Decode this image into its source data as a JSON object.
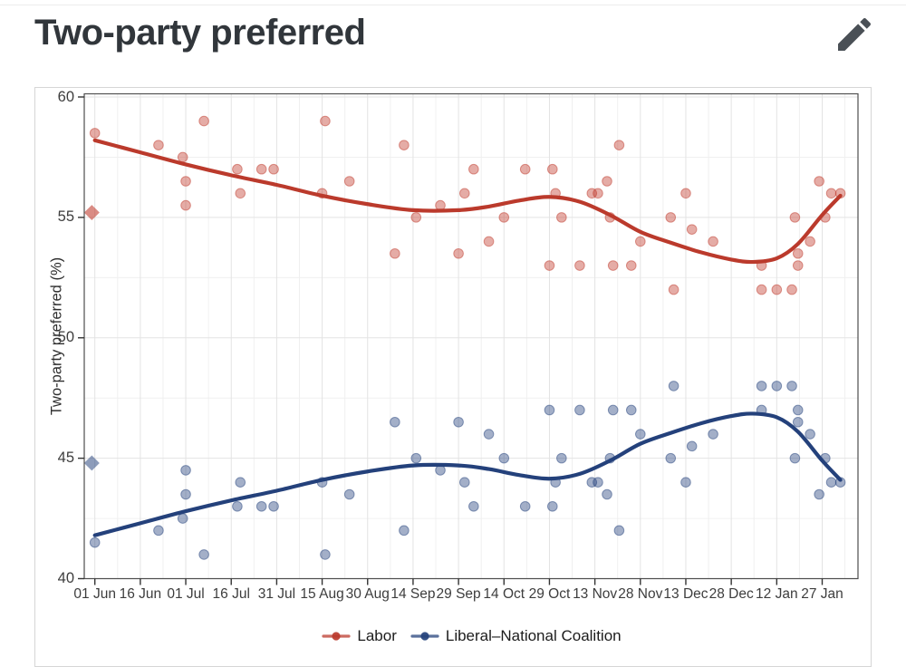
{
  "header": {
    "title": "Two-party preferred"
  },
  "theme": {
    "title_color": "#31363b",
    "icon_color": "#4a5056",
    "card_border": "#d6d6d6",
    "panel_border": "#4d4d4d",
    "grid_major": "#e3e3e3",
    "grid_minor": "#f0f0f0",
    "tick_color": "#333333",
    "axis_text": "#3d3d3d"
  },
  "chart_data": {
    "type": "scatter",
    "title": "",
    "xlabel": "",
    "ylabel": "Two-party preferred (%)",
    "ylim": [
      40,
      60
    ],
    "y_major_ticks": [
      60,
      55,
      50,
      45,
      40
    ],
    "y_minor_ticks": [
      57.5,
      52.5,
      47.5,
      42.5
    ],
    "x_tick_labels": [
      "01 Jun",
      "16 Jun",
      "01 Jul",
      "16 Jul",
      "31 Jul",
      "15 Aug",
      "30 Aug",
      "14 Sep",
      "29 Sep",
      "14 Oct",
      "29 Oct",
      "13 Nov",
      "28 Nov",
      "13 Dec",
      "28 Dec",
      "12 Jan",
      "27 Jan"
    ],
    "grid": true,
    "legend_position": "bottom",
    "series_meta": {
      "labor": {
        "label": "Labor",
        "color": "#bb3a2c",
        "point_color": "#c0392b"
      },
      "coalition": {
        "label": "Liberal–National Coalition",
        "color": "#24417b",
        "point_color": "#24417b"
      }
    },
    "election_markers": [
      {
        "date": "31 May",
        "labor": 55.2,
        "coalition": 44.8
      }
    ],
    "points": [
      {
        "date": "1 Jun",
        "labor": 58.5,
        "coalition": 41.5
      },
      {
        "date": "22 Jun",
        "labor": 58.0,
        "coalition": 42.0
      },
      {
        "date": "30 Jun",
        "labor": 57.5,
        "coalition": 42.5
      },
      {
        "date": "1 Jul",
        "labor": 55.5,
        "coalition": 44.5
      },
      {
        "date": "1 Jul",
        "labor": 56.5,
        "coalition": 43.5
      },
      {
        "date": "7 Jul",
        "labor": 59.0,
        "coalition": 41.0
      },
      {
        "date": "18 Jul",
        "labor": 57.0,
        "coalition": 43.0
      },
      {
        "date": "19 Jul",
        "labor": 56.0,
        "coalition": 44.0
      },
      {
        "date": "26 Jul",
        "labor": 57.0,
        "coalition": 43.0
      },
      {
        "date": "30 Jul",
        "labor": 57.0,
        "coalition": 43.0
      },
      {
        "date": "15 Aug",
        "labor": 56.0,
        "coalition": 44.0
      },
      {
        "date": "16 Aug",
        "labor": 59.0,
        "coalition": 41.0
      },
      {
        "date": "24 Aug",
        "labor": 56.5,
        "coalition": 43.5
      },
      {
        "date": "8 Sep",
        "labor": 53.5,
        "coalition": 46.5
      },
      {
        "date": "11 Sep",
        "labor": 58.0,
        "coalition": 42.0
      },
      {
        "date": "15 Sep",
        "labor": 55.0,
        "coalition": 45.0
      },
      {
        "date": "23 Sep",
        "labor": 55.5,
        "coalition": 44.5
      },
      {
        "date": "29 Sep",
        "labor": 53.5,
        "coalition": 46.5
      },
      {
        "date": "1 Oct",
        "labor": 56.0,
        "coalition": 44.0
      },
      {
        "date": "4 Oct",
        "labor": 57.0,
        "coalition": 43.0
      },
      {
        "date": "9 Oct",
        "labor": 54.0,
        "coalition": 46.0
      },
      {
        "date": "14 Oct",
        "labor": 55.0,
        "coalition": 45.0
      },
      {
        "date": "21 Oct",
        "labor": 57.0,
        "coalition": 43.0
      },
      {
        "date": "29 Oct",
        "labor": 53.0,
        "coalition": 47.0
      },
      {
        "date": "30 Oct",
        "labor": 57.0,
        "coalition": 43.0
      },
      {
        "date": "31 Oct",
        "labor": 56.0,
        "coalition": 44.0
      },
      {
        "date": "2 Nov",
        "labor": 55.0,
        "coalition": 45.0
      },
      {
        "date": "8 Nov",
        "labor": 53.0,
        "coalition": 47.0
      },
      {
        "date": "12 Nov",
        "labor": 56.0,
        "coalition": 44.0
      },
      {
        "date": "14 Nov",
        "labor": 56.0,
        "coalition": 44.0
      },
      {
        "date": "17 Nov",
        "labor": 56.5,
        "coalition": 43.5
      },
      {
        "date": "18 Nov",
        "labor": 55.0,
        "coalition": 45.0
      },
      {
        "date": "19 Nov",
        "labor": 53.0,
        "coalition": 47.0
      },
      {
        "date": "21 Nov",
        "labor": 58.0,
        "coalition": 42.0
      },
      {
        "date": "25 Nov",
        "labor": 53.0,
        "coalition": 47.0
      },
      {
        "date": "28 Nov",
        "labor": 54.0,
        "coalition": 46.0
      },
      {
        "date": "8 Dec",
        "labor": 55.0,
        "coalition": 45.0
      },
      {
        "date": "9 Dec",
        "labor": 52.0,
        "coalition": 48.0
      },
      {
        "date": "13 Dec",
        "labor": 56.0,
        "coalition": 44.0
      },
      {
        "date": "15 Dec",
        "labor": 54.5,
        "coalition": 45.5
      },
      {
        "date": "22 Dec",
        "labor": 54.0,
        "coalition": 46.0
      },
      {
        "date": "7 Jan",
        "labor": 53.0,
        "coalition": 47.0
      },
      {
        "date": "7 Jan",
        "labor": 52.0,
        "coalition": 48.0
      },
      {
        "date": "12 Jan",
        "labor": 52.0,
        "coalition": 48.0
      },
      {
        "date": "17 Jan",
        "labor": 52.0,
        "coalition": 48.0
      },
      {
        "date": "18 Jan",
        "labor": 55.0,
        "coalition": 45.0
      },
      {
        "date": "19 Jan",
        "labor": 53.5,
        "coalition": 46.5
      },
      {
        "date": "19 Jan",
        "labor": 53.0,
        "coalition": 47.0
      },
      {
        "date": "23 Jan",
        "labor": 54.0,
        "coalition": 46.0
      },
      {
        "date": "26 Jan",
        "labor": 56.5,
        "coalition": 43.5
      },
      {
        "date": "28 Jan",
        "labor": 55.0,
        "coalition": 45.0
      },
      {
        "date": "30 Jan",
        "labor": 56.0,
        "coalition": 44.0
      },
      {
        "date": "2 Feb",
        "labor": 56.0,
        "coalition": 44.0
      }
    ],
    "trend": [
      {
        "date": "1 Jun",
        "labor": 58.2,
        "coalition": 41.8
      },
      {
        "date": "16 Jun",
        "labor": 57.7,
        "coalition": 42.3
      },
      {
        "date": "1 Jul",
        "labor": 57.2,
        "coalition": 42.8
      },
      {
        "date": "16 Jul",
        "labor": 56.75,
        "coalition": 43.25
      },
      {
        "date": "31 Jul",
        "labor": 56.35,
        "coalition": 43.65
      },
      {
        "date": "15 Aug",
        "labor": 55.9,
        "coalition": 44.1
      },
      {
        "date": "30 Aug",
        "labor": 55.55,
        "coalition": 44.45
      },
      {
        "date": "14 Sep",
        "labor": 55.3,
        "coalition": 44.7
      },
      {
        "date": "29 Sep",
        "labor": 55.3,
        "coalition": 44.7
      },
      {
        "date": "9 Oct",
        "labor": 55.45,
        "coalition": 44.55
      },
      {
        "date": "19 Oct",
        "labor": 55.7,
        "coalition": 44.3
      },
      {
        "date": "29 Oct",
        "labor": 55.85,
        "coalition": 44.15
      },
      {
        "date": "8 Nov",
        "labor": 55.65,
        "coalition": 44.35
      },
      {
        "date": "18 Nov",
        "labor": 55.1,
        "coalition": 44.9
      },
      {
        "date": "28 Nov",
        "labor": 54.4,
        "coalition": 45.6
      },
      {
        "date": "8 Dec",
        "labor": 53.95,
        "coalition": 46.05
      },
      {
        "date": "18 Dec",
        "labor": 53.55,
        "coalition": 46.45
      },
      {
        "date": "28 Dec",
        "labor": 53.25,
        "coalition": 46.75
      },
      {
        "date": "4 Jan",
        "labor": 53.15,
        "coalition": 46.85
      },
      {
        "date": "12 Jan",
        "labor": 53.3,
        "coalition": 46.7
      },
      {
        "date": "19 Jan",
        "labor": 53.9,
        "coalition": 46.1
      },
      {
        "date": "27 Jan",
        "labor": 55.1,
        "coalition": 44.9
      },
      {
        "date": "2 Feb",
        "labor": 55.9,
        "coalition": 44.1
      }
    ]
  },
  "legend": {
    "items": [
      "Labor",
      "Liberal–National Coalition"
    ]
  }
}
